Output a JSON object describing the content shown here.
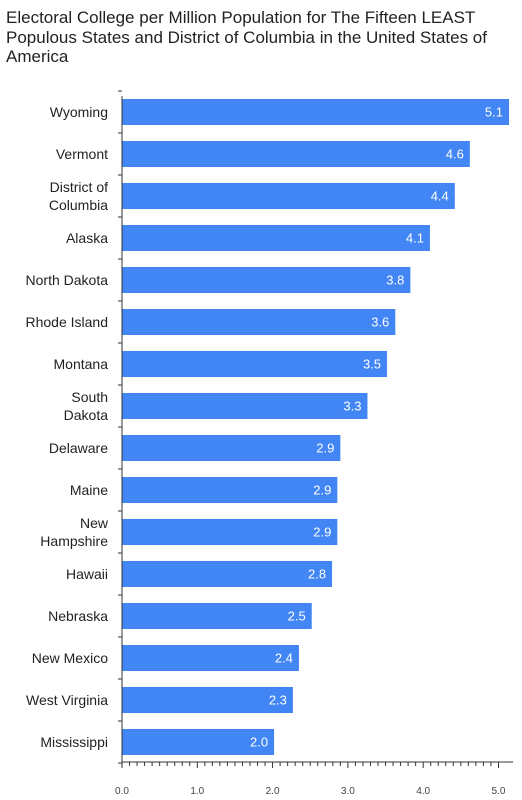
{
  "chart_data": {
    "type": "bar",
    "orientation": "horizontal",
    "title": "Electoral College per Million Population for The Fifteen LEAST Populous States and District of Columbia in the United States of America",
    "categories": [
      "Wyoming",
      "Vermont",
      "District of Columbia",
      "Alaska",
      "North Dakota",
      "Rhode Island",
      "Montana",
      "South Dakota",
      "Delaware",
      "Maine",
      "New Hampshire",
      "Hawaii",
      "Nebraska",
      "New Mexico",
      "West Virginia",
      "Mississippi"
    ],
    "category_lines": [
      [
        "Wyoming"
      ],
      [
        "Vermont"
      ],
      [
        "District of",
        "Columbia"
      ],
      [
        "Alaska"
      ],
      [
        "North Dakota"
      ],
      [
        "Rhode Island"
      ],
      [
        "Montana"
      ],
      [
        "South",
        "Dakota"
      ],
      [
        "Delaware"
      ],
      [
        "Maine"
      ],
      [
        "New",
        "Hampshire"
      ],
      [
        "Hawaii"
      ],
      [
        "Nebraska"
      ],
      [
        "New Mexico"
      ],
      [
        "West Virginia"
      ],
      [
        "Mississippi"
      ]
    ],
    "values": [
      5.14,
      4.62,
      4.42,
      4.09,
      3.83,
      3.63,
      3.52,
      3.26,
      2.9,
      2.86,
      2.86,
      2.79,
      2.52,
      2.35,
      2.27,
      2.02
    ],
    "value_labels": [
      "5.1",
      "4.6",
      "4.4",
      "4.1",
      "3.8",
      "3.6",
      "3.5",
      "3.3",
      "2.9",
      "2.9",
      "2.9",
      "2.8",
      "2.5",
      "2.4",
      "2.3",
      "2.0"
    ],
    "x_ticks": [
      0,
      1,
      2,
      3,
      4,
      5
    ],
    "x_tick_labels": [
      "0.0",
      "1.0",
      "2.0",
      "3.0",
      "4.0",
      "5.0"
    ],
    "xlim": [
      0,
      5.14
    ],
    "xlabel": "",
    "ylabel": "",
    "bar_color": "#4285f4",
    "grid": false,
    "legend": "none"
  }
}
